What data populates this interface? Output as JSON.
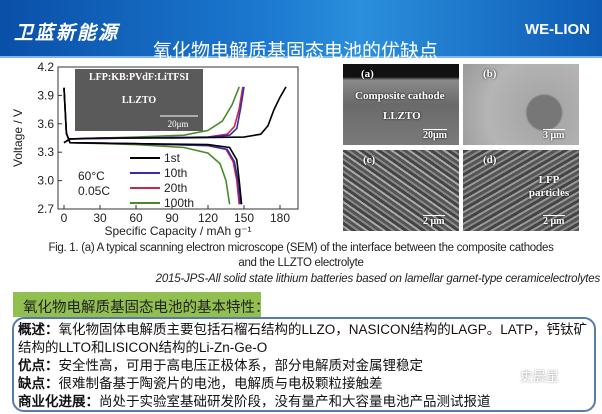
{
  "header": {
    "brand": "卫蓝新能源",
    "logo": "WE-LION",
    "title": "氧化物电解质基固态电池的优缺点"
  },
  "chart_data": {
    "type": "line",
    "xlabel": "Specific Capacity / mAh g⁻¹",
    "ylabel": "Voltage / V",
    "xlim": [
      -5,
      195
    ],
    "ylim": [
      2.7,
      4.2
    ],
    "xticks": [
      0,
      30,
      60,
      90,
      120,
      150,
      180
    ],
    "yticks": [
      2.7,
      3.0,
      3.3,
      3.6,
      3.9,
      4.2
    ],
    "annotation": [
      "60°C",
      "0.05C"
    ],
    "inset": {
      "label": "LFP:KB:PVdF:LiTFSI",
      "sublabel": "LLZTO",
      "scale": "20μm"
    },
    "legend_position": "center",
    "series": [
      {
        "name": "1st",
        "color": "#000000",
        "charge": [
          [
            0,
            3.4
          ],
          [
            5,
            3.44
          ],
          [
            30,
            3.45
          ],
          [
            90,
            3.45
          ],
          [
            150,
            3.46
          ],
          [
            164,
            3.49
          ],
          [
            170,
            3.58
          ],
          [
            175,
            3.75
          ],
          [
            180,
            3.88
          ],
          [
            185,
            3.99
          ]
        ],
        "discharge": [
          [
            0,
            3.98
          ],
          [
            2,
            3.5
          ],
          [
            5,
            3.4
          ],
          [
            60,
            3.39
          ],
          [
            120,
            3.38
          ],
          [
            138,
            3.35
          ],
          [
            144,
            3.22
          ],
          [
            146,
            3.0
          ],
          [
            148,
            2.75
          ]
        ]
      },
      {
        "name": "10th",
        "color": "#3a2ca8",
        "charge": [
          [
            0,
            3.4
          ],
          [
            5,
            3.44
          ],
          [
            60,
            3.45
          ],
          [
            120,
            3.46
          ],
          [
            138,
            3.48
          ],
          [
            144,
            3.55
          ],
          [
            147,
            3.75
          ],
          [
            150,
            3.99
          ]
        ],
        "discharge": [
          [
            0,
            3.98
          ],
          [
            2,
            3.5
          ],
          [
            5,
            3.4
          ],
          [
            60,
            3.39
          ],
          [
            120,
            3.37
          ],
          [
            136,
            3.33
          ],
          [
            142,
            3.2
          ],
          [
            145,
            3.0
          ],
          [
            147,
            2.75
          ]
        ]
      },
      {
        "name": "20th",
        "color": "#c8284a",
        "charge": [
          [
            0,
            3.4
          ],
          [
            5,
            3.44
          ],
          [
            60,
            3.45
          ],
          [
            120,
            3.46
          ],
          [
            136,
            3.49
          ],
          [
            142,
            3.57
          ],
          [
            146,
            3.76
          ],
          [
            149,
            3.99
          ]
        ],
        "discharge": [
          [
            0,
            3.98
          ],
          [
            2,
            3.5
          ],
          [
            5,
            3.4
          ],
          [
            60,
            3.39
          ],
          [
            120,
            3.37
          ],
          [
            135,
            3.33
          ],
          [
            141,
            3.2
          ],
          [
            144,
            3.0
          ],
          [
            146,
            2.75
          ]
        ]
      },
      {
        "name": "100th",
        "color": "#4a8a2a",
        "charge": [
          [
            0,
            3.4
          ],
          [
            5,
            3.44
          ],
          [
            60,
            3.46
          ],
          [
            100,
            3.48
          ],
          [
            120,
            3.53
          ],
          [
            132,
            3.63
          ],
          [
            140,
            3.8
          ],
          [
            146,
            3.99
          ]
        ],
        "discharge": [
          [
            0,
            3.98
          ],
          [
            2,
            3.5
          ],
          [
            5,
            3.4
          ],
          [
            60,
            3.38
          ],
          [
            100,
            3.35
          ],
          [
            120,
            3.29
          ],
          [
            130,
            3.18
          ],
          [
            135,
            3.0
          ],
          [
            138,
            2.75
          ]
        ]
      }
    ]
  },
  "sem": {
    "a": "(a)",
    "a_text1": "Composite cathode",
    "a_text2": "LLZTO",
    "a_scale": "20μm",
    "b": "(b)",
    "b_scale": "3 μm",
    "c": "(c)",
    "c_scale": "2 μm",
    "d": "(d)",
    "d_text": "LFP particles",
    "d_scale": "2 μm"
  },
  "caption": {
    "line1": "Fig. 1. (a) A typical scanning electron microscope (SEM) of the interface between the composite cathodes",
    "line2": "and the LLZTO electrolyte",
    "line3": "2015-JPS-All solid state lithium batteries based on lamellar garnet-type ceramicelectrolytes"
  },
  "section": {
    "heading": "氧化物电解质基固态电池的基本特性：",
    "items": [
      {
        "label": "概述：",
        "text": "氧化物固体电解质主要包括石榴石结构的LLZO，NASICON结构的LAGP。LATP，钙钛矿结构的LLTO和LISICON结构的Li-Zn-Ge-O"
      },
      {
        "label": "优点：",
        "text": "安全性高，可用于高电压正极体系，部分电解质对金属锂稳定"
      },
      {
        "label": "缺点：",
        "text": "很难制备基于陶瓷片的电池，电解质与电极颗粒接触差"
      },
      {
        "label": "商业化进展：",
        "text": "尚处于实验室基础研发阶段，没有量产和大容量电池产品测试报道"
      }
    ]
  },
  "watermark": "史晨星"
}
